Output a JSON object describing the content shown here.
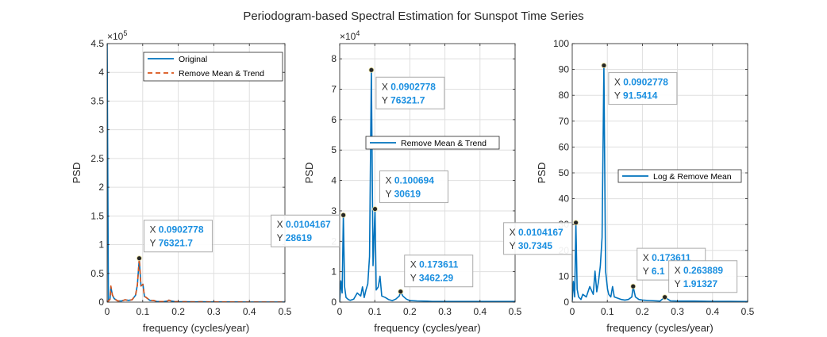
{
  "figure_title": "Periodogram-based Spectral Estimation for Sunspot Time Series",
  "colors": {
    "blue": "#0072BD",
    "orange": "#D95319",
    "tip_value": "#1A8FE0",
    "axis": "#262626",
    "grid": "#DFDFDF"
  },
  "chart_data": [
    {
      "type": "line",
      "xlabel": "frequency (cycles/year)",
      "ylabel": "PSD",
      "xlim": [
        0,
        0.5
      ],
      "ylim": [
        0,
        4.5
      ],
      "y_exponent": "×10^5",
      "exp_base": "×10",
      "exp_power": "5",
      "xticks": [
        "0",
        "0.1",
        "0.2",
        "0.3",
        "0.4",
        "0.5"
      ],
      "xtick_values": [
        0,
        0.1,
        0.2,
        0.3,
        0.4,
        0.5
      ],
      "yticks": [
        "0",
        "0.5",
        "1",
        "1.5",
        "2",
        "2.5",
        "3",
        "3.5",
        "4",
        "4.5"
      ],
      "ytick_values": [
        0,
        0.5,
        1,
        1.5,
        2,
        2.5,
        3,
        3.5,
        4,
        4.5
      ],
      "grid": true,
      "legend_position": "top-right",
      "series": [
        {
          "name": "Original",
          "color": "#0072BD",
          "dash": false,
          "x": [
            0,
            0.0035,
            0.008,
            0.0104,
            0.015,
            0.02,
            0.03,
            0.04,
            0.05,
            0.06,
            0.07,
            0.08,
            0.085,
            0.0903,
            0.095,
            0.1007,
            0.105,
            0.11,
            0.12,
            0.13,
            0.14,
            0.15,
            0.16,
            0.17,
            0.1736,
            0.18,
            0.19,
            0.2,
            0.22,
            0.25,
            0.2639,
            0.3,
            0.35,
            0.4,
            0.45,
            0.5
          ],
          "y": [
            4.5,
            0.02,
            0.05,
            0.26,
            0.12,
            0.06,
            0.02,
            0.02,
            0.04,
            0.03,
            0.04,
            0.12,
            0.3,
            0.76,
            0.28,
            0.31,
            0.1,
            0.08,
            0.03,
            0.03,
            0.01,
            0.01,
            0.01,
            0.02,
            0.035,
            0.02,
            0.01,
            0.005,
            0.005,
            0.004,
            0.005,
            0.003,
            0.003,
            0.002,
            0.002,
            0.002
          ]
        },
        {
          "name": "Remove Mean & Trend",
          "color": "#D95319",
          "dash": true,
          "x": [
            0,
            0.0035,
            0.008,
            0.0104,
            0.015,
            0.02,
            0.03,
            0.04,
            0.05,
            0.06,
            0.07,
            0.08,
            0.085,
            0.0903,
            0.095,
            0.1007,
            0.105,
            0.11,
            0.12,
            0.13,
            0.14,
            0.15,
            0.16,
            0.17,
            0.1736,
            0.18,
            0.19,
            0.2,
            0.22,
            0.25,
            0.2639,
            0.3,
            0.35,
            0.4,
            0.45,
            0.5
          ],
          "y": [
            0.0,
            0.02,
            0.05,
            0.28,
            0.12,
            0.06,
            0.02,
            0.02,
            0.04,
            0.03,
            0.04,
            0.12,
            0.3,
            0.76,
            0.28,
            0.31,
            0.1,
            0.08,
            0.03,
            0.03,
            0.01,
            0.01,
            0.01,
            0.02,
            0.035,
            0.02,
            0.01,
            0.005,
            0.005,
            0.004,
            0.005,
            0.003,
            0.003,
            0.002,
            0.002,
            0.002
          ]
        }
      ],
      "datatips": [
        {
          "x": 0.0903,
          "y": 0.763217,
          "x_text": "0.0902778",
          "y_text": "76321.7",
          "box_dx": 6,
          "box_dy": -48
        }
      ]
    },
    {
      "type": "line",
      "xlabel": "frequency (cycles/year)",
      "ylabel": "PSD",
      "xlim": [
        0,
        0.5
      ],
      "ylim": [
        0,
        8.5
      ],
      "y_exponent": "×10^4",
      "exp_base": "×10",
      "exp_power": "4",
      "xticks": [
        "0",
        "0.1",
        "0.2",
        "0.3",
        "0.4",
        "0.5"
      ],
      "xtick_values": [
        0,
        0.1,
        0.2,
        0.3,
        0.4,
        0.5
      ],
      "yticks": [
        "0",
        "1",
        "2",
        "3",
        "4",
        "5",
        "6",
        "7",
        "8"
      ],
      "ytick_values": [
        0,
        1,
        2,
        3,
        4,
        5,
        6,
        7,
        8
      ],
      "grid": true,
      "legend_position": "center-right",
      "series": [
        {
          "name": "Remove Mean & Trend",
          "color": "#0072BD",
          "dash": false,
          "x": [
            0,
            0.0035,
            0.007,
            0.0104,
            0.014,
            0.018,
            0.025,
            0.03,
            0.04,
            0.05,
            0.06,
            0.065,
            0.07,
            0.075,
            0.08,
            0.085,
            0.0903,
            0.095,
            0.1007,
            0.104,
            0.11,
            0.115,
            0.12,
            0.13,
            0.14,
            0.15,
            0.16,
            0.17,
            0.1736,
            0.18,
            0.19,
            0.2,
            0.22,
            0.25,
            0.2639,
            0.28,
            0.3,
            0.35,
            0.4,
            0.45,
            0.5
          ],
          "y": [
            0.02,
            0.7,
            0.3,
            2.862,
            0.5,
            0.15,
            0.08,
            0.06,
            0.1,
            0.3,
            0.2,
            0.5,
            0.15,
            0.4,
            0.6,
            1.5,
            7.632,
            1.2,
            3.062,
            0.4,
            0.5,
            0.85,
            0.2,
            0.15,
            0.08,
            0.05,
            0.1,
            0.2,
            0.346,
            0.2,
            0.1,
            0.05,
            0.04,
            0.03,
            0.02,
            0.02,
            0.02,
            0.02,
            0.02,
            0.02,
            0.02
          ]
        }
      ],
      "datatips": [
        {
          "x": 0.0903,
          "y": 7.63217,
          "x_text": "0.0902778",
          "y_text": "76321.7",
          "box_dx": 6,
          "box_dy": 9
        },
        {
          "x": 0.1007,
          "y": 3.0619,
          "x_text": "0.100694",
          "y_text": "30619",
          "box_dx": 6,
          "box_dy": -48
        },
        {
          "x": 0.0104,
          "y": 2.8619,
          "x_text": "0.0104167",
          "y_text": "28619",
          "box_dx": -91,
          "box_dy": 0
        },
        {
          "x": 0.1736,
          "y": 0.346229,
          "x_text": "0.173611",
          "y_text": "3462.29",
          "box_dx": 5,
          "box_dy": -46
        }
      ]
    },
    {
      "type": "line",
      "xlabel": "frequency (cycles/year)",
      "ylabel": "PSD",
      "xlim": [
        0,
        0.5
      ],
      "ylim": [
        0,
        100
      ],
      "y_exponent": "",
      "exp_base": "",
      "exp_power": "",
      "xticks": [
        "0",
        "0.1",
        "0.2",
        "0.3",
        "0.4",
        "0.5"
      ],
      "xtick_values": [
        0,
        0.1,
        0.2,
        0.3,
        0.4,
        0.5
      ],
      "yticks": [
        "0",
        "10",
        "20",
        "30",
        "40",
        "50",
        "60",
        "70",
        "80",
        "90",
        "100"
      ],
      "ytick_values": [
        0,
        10,
        20,
        30,
        40,
        50,
        60,
        70,
        80,
        90,
        100
      ],
      "grid": true,
      "legend_position": "center-right",
      "series": [
        {
          "name": "Log & Remove Mean",
          "color": "#0072BD",
          "dash": false,
          "x": [
            0,
            0.0035,
            0.007,
            0.0104,
            0.014,
            0.018,
            0.025,
            0.03,
            0.04,
            0.05,
            0.06,
            0.065,
            0.07,
            0.075,
            0.08,
            0.085,
            0.0903,
            0.095,
            0.1007,
            0.104,
            0.11,
            0.115,
            0.12,
            0.13,
            0.14,
            0.15,
            0.16,
            0.17,
            0.1736,
            0.18,
            0.19,
            0.2,
            0.22,
            0.25,
            0.2639,
            0.28,
            0.3,
            0.35,
            0.4,
            0.45,
            0.5
          ],
          "y": [
            0.5,
            8,
            2,
            30.73,
            5,
            2,
            1,
            3,
            2,
            6,
            3,
            12,
            4,
            8,
            14,
            25,
            91.54,
            12,
            5,
            3,
            2,
            6,
            2,
            1.5,
            1,
            0.8,
            1,
            2,
            6.1,
            2,
            1,
            0.8,
            0.6,
            0.4,
            1.91,
            0.5,
            0.4,
            0.4,
            0.3,
            0.3,
            0.2
          ]
        }
      ],
      "datatips": [
        {
          "x": 0.0903,
          "y": 91.5414,
          "x_text": "0.0902778",
          "y_text": "91.5414",
          "box_dx": 6,
          "box_dy": 9
        },
        {
          "x": 0.0104,
          "y": 30.7345,
          "x_text": "0.0104167",
          "y_text": "30.7345",
          "box_dx": -91,
          "box_dy": 0
        },
        {
          "x": 0.1736,
          "y": 6.1,
          "x_text": "0.173611",
          "y_text": "6.1",
          "box_dx": 5,
          "box_dy": -48
        },
        {
          "x": 0.2639,
          "y": 1.91327,
          "x_text": "0.263889",
          "y_text": "1.91327",
          "box_dx": 5,
          "box_dy": -46
        }
      ]
    }
  ]
}
